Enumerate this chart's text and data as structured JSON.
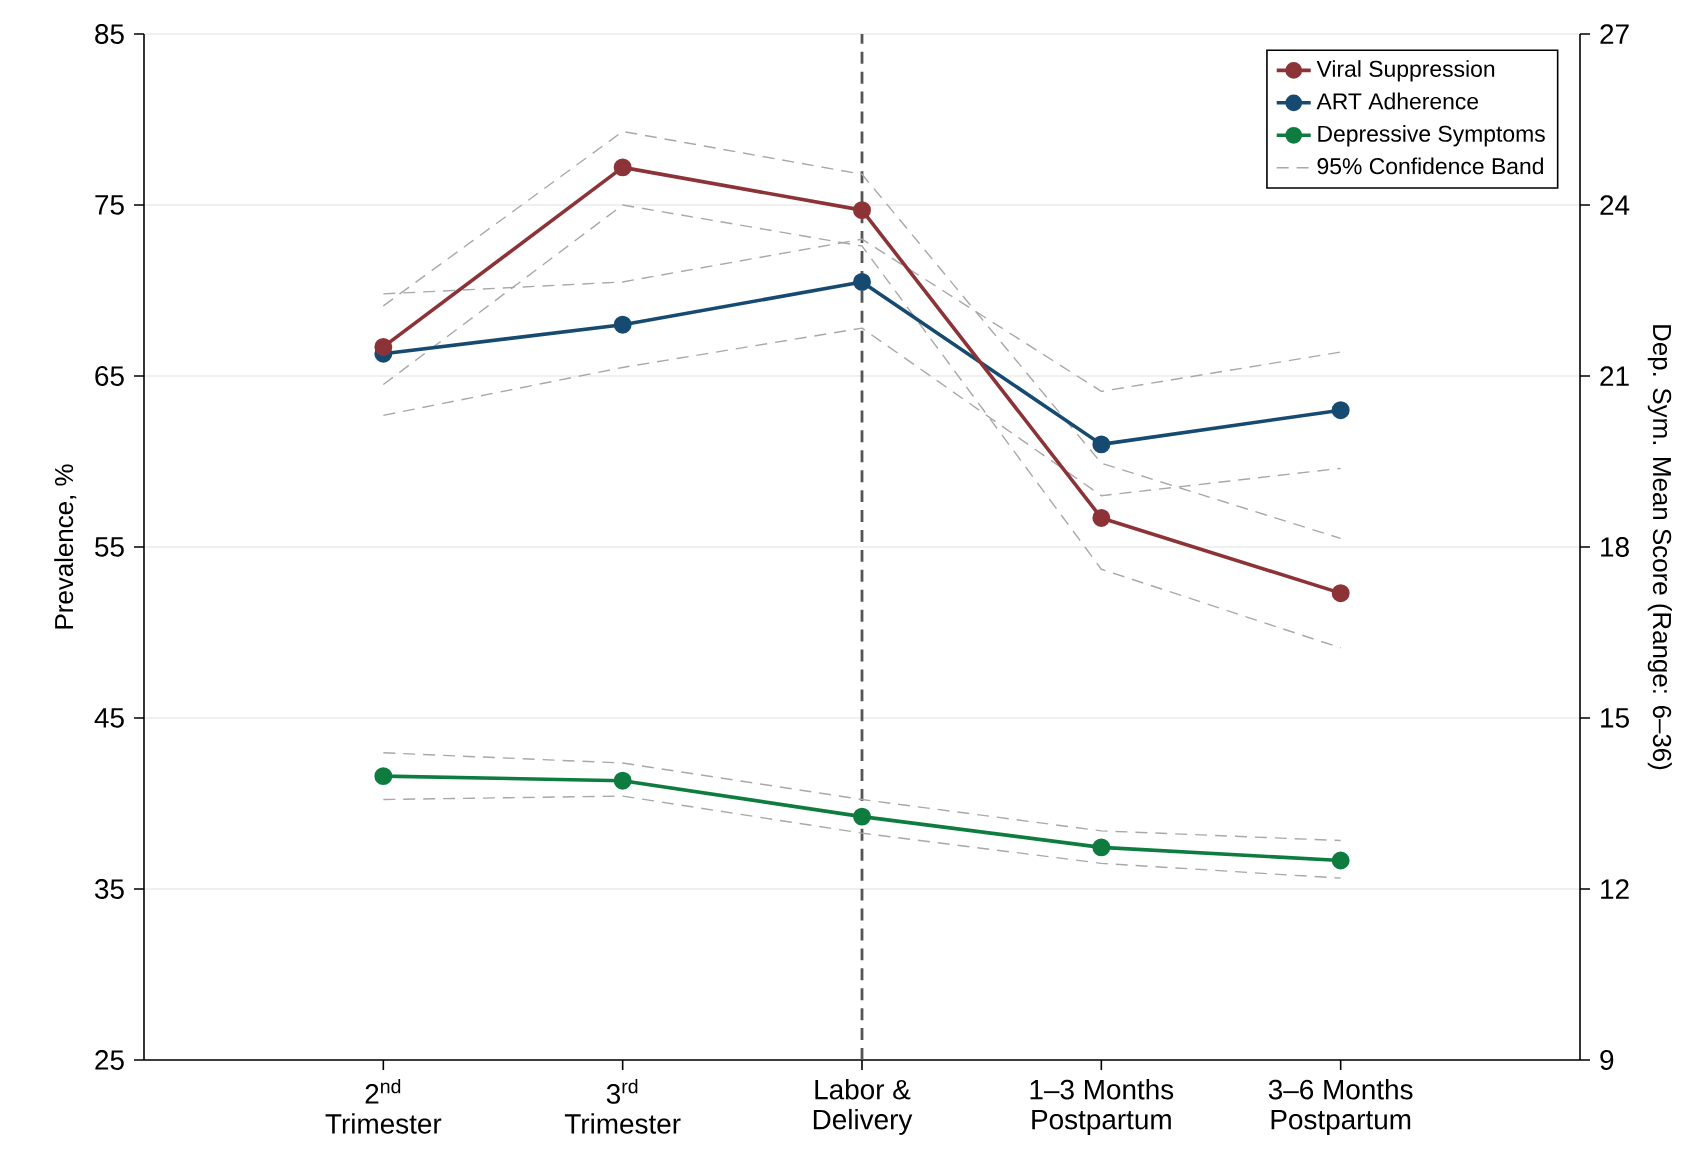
{
  "chart_data": {
    "type": "line",
    "categories": [
      "2$^{nd}$\nTrimester",
      "3$^{rd}$\nTrimester",
      "Labor &\nDelivery",
      "1–3 Months\nPostpartum",
      "3–6 Months\nPostpartum"
    ],
    "series": [
      {
        "name": "Viral Suppression",
        "color": "#8c3338",
        "values": [
          66.7,
          77.2,
          74.7,
          56.7,
          52.3
        ]
      },
      {
        "name": "ART Adherence",
        "color": "#164a70",
        "values": [
          66.3,
          68.0,
          70.5,
          61.0,
          63.0
        ]
      },
      {
        "name": "Depressive Symptoms",
        "color": "#0e7c3f",
        "axis": "y2",
        "values": [
          13.98,
          13.9,
          13.27,
          12.73,
          12.5
        ]
      },
      {
        "name": "95% Confidence Band",
        "color": "#a8a8a8",
        "line_style": "dashed",
        "marker": "none",
        "values": [
          69.1,
          79.3,
          76.8,
          59.9,
          55.5
        ]
      },
      {
        "color": "#a8a8a8",
        "line_style": "dashed",
        "marker": "none",
        "values": [
          64.5,
          75.0,
          72.6,
          53.7,
          49.1
        ]
      },
      {
        "color": "#a8a8a8",
        "line_style": "dashed",
        "marker": "none",
        "values": [
          69.8,
          70.5,
          73.0,
          64.1,
          66.4
        ]
      },
      {
        "color": "#a8a8a8",
        "line_style": "dashed",
        "marker": "none",
        "values": [
          62.7,
          65.5,
          67.8,
          58.0,
          59.6
        ]
      },
      {
        "color": "#a8a8a8",
        "line_style": "dashed",
        "marker": "none",
        "axis": "y2",
        "values": [
          14.39,
          14.21,
          13.57,
          13.02,
          12.85
        ]
      },
      {
        "color": "#a8a8a8",
        "line_style": "dashed",
        "marker": "none",
        "axis": "y2",
        "values": [
          13.57,
          13.63,
          12.98,
          12.45,
          12.19
        ]
      }
    ],
    "ylabel": "Prevalence, %",
    "y2label": "Dep. Sym. Mean Score (Range: 6–36)",
    "ylim": [
      25,
      85
    ],
    "yticks": [
      25,
      35,
      45,
      55,
      65,
      75,
      85
    ],
    "y2lim": [
      9,
      27
    ],
    "y2ticks": [
      9,
      12,
      15,
      18,
      21,
      24,
      27
    ],
    "ref_lines": [
      {
        "axis": "x",
        "value": "Labor &\nDelivery",
        "color": "#555555",
        "line_style": "dashed"
      }
    ],
    "grid": "y",
    "legend": "top right",
    "marker": "circle",
    "line_style": "solid"
  }
}
